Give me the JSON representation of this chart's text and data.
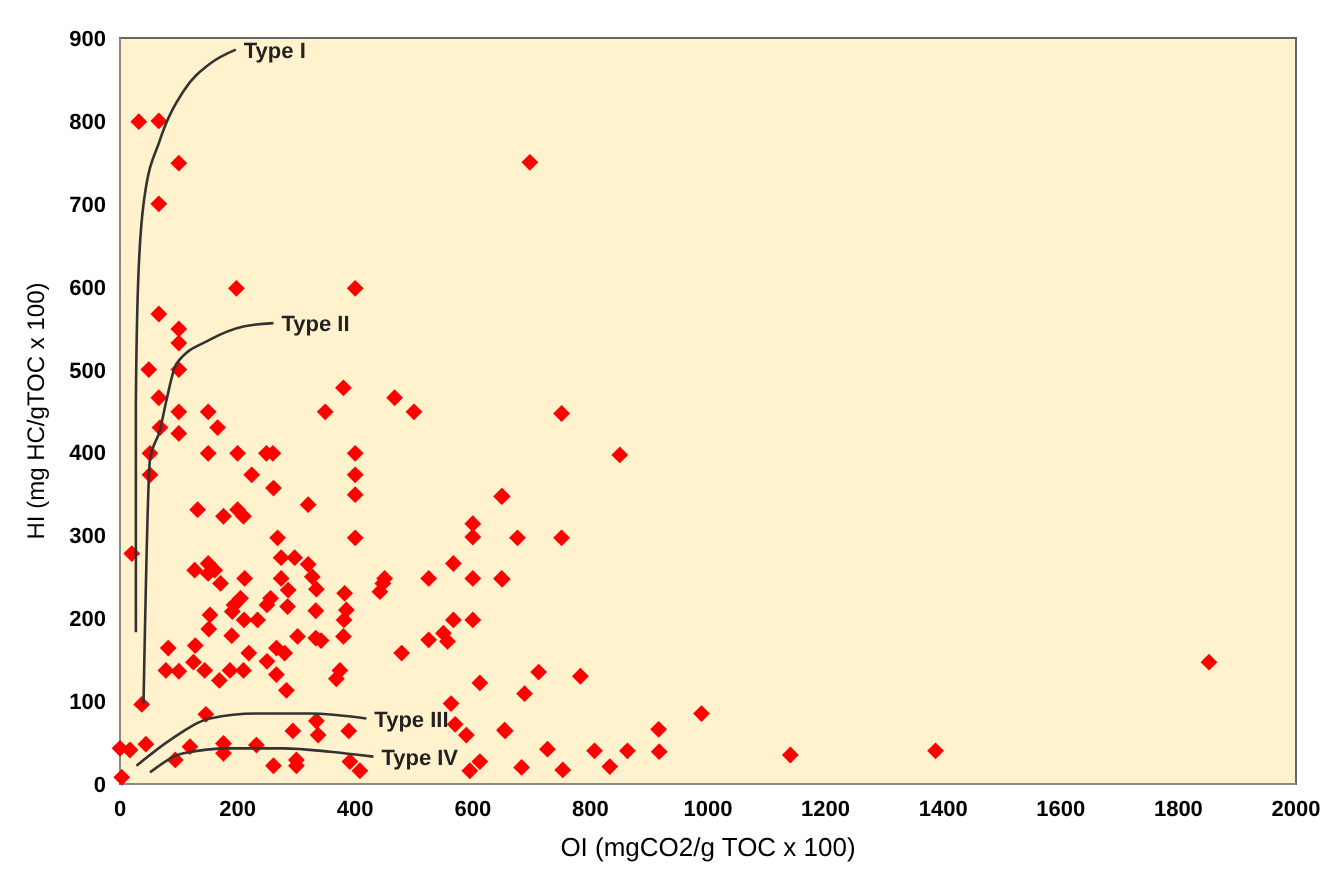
{
  "chart_data": {
    "type": "scatter",
    "xlabel": "OI (mgCO2/g TOC x 100)",
    "ylabel": "HI (mg HC/gTOC x 100)",
    "xlim": [
      0,
      2000
    ],
    "ylim": [
      0,
      900
    ],
    "xticks": [
      0,
      200,
      400,
      600,
      800,
      1000,
      1200,
      1400,
      1600,
      1800,
      2000
    ],
    "yticks": [
      0,
      100,
      200,
      300,
      400,
      500,
      600,
      700,
      800,
      900
    ],
    "grid": false,
    "marker": "diamond",
    "series": [
      {
        "color": "#ff0000",
        "x": [
          32,
          66,
          100,
          66,
          198,
          400,
          66,
          100,
          100,
          49,
          100,
          380,
          66,
          467,
          500,
          100,
          150,
          349,
          68,
          166,
          100,
          150,
          200,
          249,
          260,
          400,
          51,
          224,
          400,
          51,
          261,
          400,
          132,
          176,
          200,
          210,
          320,
          649,
          600,
          600,
          268,
          400,
          20,
          127,
          150,
          161,
          274,
          297,
          320,
          327,
          150,
          171,
          212,
          274,
          286,
          334,
          525,
          567,
          600,
          649,
          442,
          447,
          450,
          382,
          205,
          194,
          256,
          250,
          285,
          333,
          385,
          153,
          191,
          211,
          234,
          151,
          567,
          600,
          381,
          302,
          333,
          342,
          190,
          380,
          82,
          128,
          266,
          280,
          219,
          250,
          550,
          525,
          557,
          479,
          78,
          100,
          144,
          125,
          169,
          187,
          210,
          266,
          283,
          374,
          368,
          612,
          37,
          563,
          146,
          334,
          294,
          337,
          389,
          570,
          589,
          654,
          0,
          17,
          44,
          119,
          176,
          232,
          94,
          176,
          261,
          300,
          300,
          391,
          408,
          595,
          612,
          3,
          751,
          850,
          650,
          676,
          751,
          650,
          712,
          688,
          783,
          655,
          727,
          807,
          863,
          916,
          917,
          989,
          1140,
          683,
          753,
          833,
          697,
          1852,
          1387
        ],
        "values": [
          799,
          800,
          749,
          700,
          598,
          598,
          567,
          549,
          532,
          500,
          500,
          478,
          466,
          466,
          449,
          449,
          449,
          449,
          430,
          430,
          423,
          399,
          399,
          399,
          399,
          399,
          399,
          373,
          373,
          373,
          357,
          349,
          331,
          323,
          331,
          323,
          337,
          347,
          314,
          298,
          297,
          297,
          278,
          258,
          266,
          258,
          273,
          273,
          265,
          250,
          254,
          242,
          248,
          248,
          234,
          235,
          248,
          266,
          248,
          248,
          232,
          242,
          248,
          230,
          224,
          216,
          224,
          216,
          214,
          209,
          210,
          204,
          208,
          198,
          198,
          187,
          198,
          198,
          198,
          178,
          176,
          173,
          179,
          178,
          164,
          167,
          164,
          158,
          158,
          148,
          182,
          174,
          172,
          158,
          137,
          136,
          137,
          147,
          125,
          137,
          137,
          132,
          113,
          137,
          127,
          122,
          96,
          97,
          84,
          76,
          64,
          59,
          64,
          72,
          59,
          65,
          43,
          41,
          48,
          45,
          49,
          47,
          29,
          37,
          22,
          29,
          22,
          27,
          16,
          16,
          27,
          8,
          447,
          397,
          347,
          297,
          297,
          247,
          135,
          109,
          130,
          64,
          42,
          40,
          40,
          66,
          39,
          85,
          35,
          20,
          17,
          21,
          750,
          147,
          40
        ]
      },
      {
        "type": "line",
        "marker": "none",
        "name": "Type I",
        "color": "#333333",
        "x": [
          27,
          27,
          31,
          41,
          68,
          109,
          153,
          197
        ],
        "values": [
          183,
          463,
          608,
          705,
          777,
          837,
          869,
          886
        ]
      },
      {
        "type": "line",
        "marker": "none",
        "name": "Type II",
        "color": "#333333",
        "x": [
          40,
          51,
          68,
          79,
          96,
          153,
          210,
          261
        ],
        "values": [
          97,
          391,
          427,
          463,
          507,
          536,
          552,
          556
        ]
      },
      {
        "type": "line",
        "marker": "none",
        "name": "Type III",
        "color": "#333333",
        "x": [
          28,
          85,
          153,
          232,
          323,
          419
        ],
        "values": [
          22,
          53,
          79,
          85,
          85,
          79
        ]
      },
      {
        "type": "line",
        "marker": "none",
        "name": "Type IV",
        "color": "#333333",
        "x": [
          51,
          108,
          187,
          278,
          357,
          431
        ],
        "values": [
          14,
          37,
          43,
          43,
          39,
          33
        ]
      }
    ]
  }
}
